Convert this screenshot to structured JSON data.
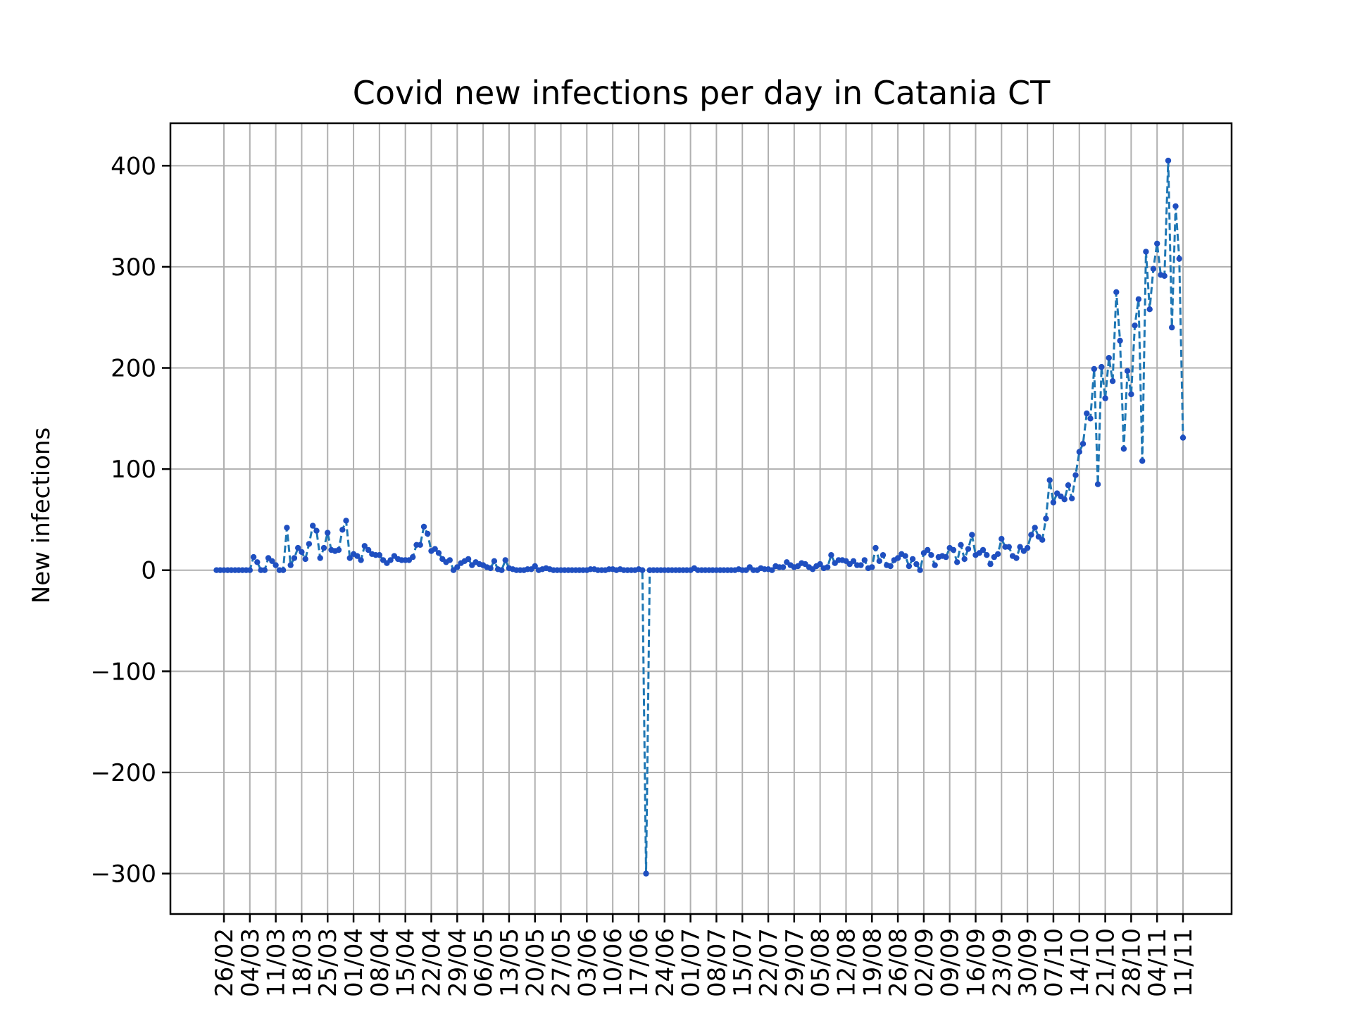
{
  "chart_data": {
    "type": "line",
    "title": "Covid new infections per day in Catania CT",
    "xlabel": "",
    "ylabel": "New infections",
    "ylim": [
      -340,
      442
    ],
    "yticks": [
      -300,
      -200,
      -100,
      0,
      100,
      200,
      300,
      400
    ],
    "ytick_labels": [
      "−300",
      "−200",
      "−100",
      "0",
      "100",
      "200",
      "300",
      "400"
    ],
    "xticks": [
      {
        "date": "2020-02-26",
        "label": "26/02"
      },
      {
        "date": "2020-03-04",
        "label": "04/03"
      },
      {
        "date": "2020-03-11",
        "label": "11/03"
      },
      {
        "date": "2020-03-18",
        "label": "18/03"
      },
      {
        "date": "2020-03-25",
        "label": "25/03"
      },
      {
        "date": "2020-04-01",
        "label": "01/04"
      },
      {
        "date": "2020-04-08",
        "label": "08/04"
      },
      {
        "date": "2020-04-15",
        "label": "15/04"
      },
      {
        "date": "2020-04-22",
        "label": "22/04"
      },
      {
        "date": "2020-04-29",
        "label": "29/04"
      },
      {
        "date": "2020-05-06",
        "label": "06/05"
      },
      {
        "date": "2020-05-13",
        "label": "13/05"
      },
      {
        "date": "2020-05-20",
        "label": "20/05"
      },
      {
        "date": "2020-05-27",
        "label": "27/05"
      },
      {
        "date": "2020-06-03",
        "label": "03/06"
      },
      {
        "date": "2020-06-10",
        "label": "10/06"
      },
      {
        "date": "2020-06-17",
        "label": "17/06"
      },
      {
        "date": "2020-06-24",
        "label": "24/06"
      },
      {
        "date": "2020-07-01",
        "label": "01/07"
      },
      {
        "date": "2020-07-08",
        "label": "08/07"
      },
      {
        "date": "2020-07-15",
        "label": "15/07"
      },
      {
        "date": "2020-07-22",
        "label": "22/07"
      },
      {
        "date": "2020-07-29",
        "label": "29/07"
      },
      {
        "date": "2020-08-05",
        "label": "05/08"
      },
      {
        "date": "2020-08-12",
        "label": "12/08"
      },
      {
        "date": "2020-08-19",
        "label": "19/08"
      },
      {
        "date": "2020-08-26",
        "label": "26/08"
      },
      {
        "date": "2020-09-02",
        "label": "02/09"
      },
      {
        "date": "2020-09-09",
        "label": "09/09"
      },
      {
        "date": "2020-09-16",
        "label": "16/09"
      },
      {
        "date": "2020-09-23",
        "label": "23/09"
      },
      {
        "date": "2020-09-30",
        "label": "30/09"
      },
      {
        "date": "2020-10-07",
        "label": "07/10"
      },
      {
        "date": "2020-10-14",
        "label": "14/10"
      },
      {
        "date": "2020-10-21",
        "label": "21/10"
      },
      {
        "date": "2020-10-28",
        "label": "28/10"
      },
      {
        "date": "2020-11-04",
        "label": "04/11"
      },
      {
        "date": "2020-11-11",
        "label": "11/11"
      }
    ],
    "grid": true,
    "legend": "none",
    "colors": {
      "line": "#1f77b4",
      "marker": "#1f4fc0"
    },
    "line_style": "dashed",
    "marker": "dot",
    "series": [
      {
        "start_date": "2020-02-24",
        "values": [
          0,
          0,
          0,
          0,
          0,
          0,
          0,
          0,
          0,
          0,
          13,
          8,
          0,
          0,
          12,
          9,
          5,
          0,
          0,
          42,
          5,
          12,
          22,
          18,
          11,
          26,
          44,
          39,
          12,
          22,
          37,
          20,
          19,
          20,
          40,
          49,
          12,
          16,
          14,
          10,
          24,
          20,
          16,
          15,
          15,
          10,
          7,
          10,
          14,
          11,
          10,
          10,
          10,
          13,
          25,
          25,
          43,
          36,
          19,
          21,
          17,
          11,
          8,
          10,
          0,
          3,
          7,
          9,
          11,
          5,
          8,
          6,
          5,
          3,
          2,
          9,
          1,
          0,
          10,
          2,
          1,
          0,
          0,
          0,
          1,
          1,
          4,
          0,
          1,
          2,
          1,
          0,
          0,
          0,
          0,
          0,
          0,
          0,
          0,
          0,
          0,
          1,
          1,
          0,
          0,
          0,
          1,
          1,
          0,
          1,
          0,
          0,
          0,
          0,
          1,
          0,
          -300,
          0,
          0,
          0,
          0,
          0,
          0,
          0,
          0,
          0,
          0,
          0,
          0,
          2,
          0,
          0,
          0,
          0,
          0,
          0,
          0,
          0,
          0,
          0,
          0,
          1,
          0,
          0,
          3,
          0,
          0,
          2,
          1,
          1,
          0,
          4,
          3,
          3,
          8,
          5,
          3,
          4,
          7,
          6,
          3,
          1,
          4,
          6,
          2,
          3,
          15,
          7,
          10,
          10,
          9,
          6,
          9,
          5,
          5,
          10,
          2,
          3,
          22,
          9,
          15,
          5,
          4,
          10,
          12,
          16,
          14,
          4,
          11,
          6,
          0,
          17,
          20,
          15,
          5,
          13,
          14,
          13,
          22,
          20,
          8,
          25,
          11,
          21,
          35,
          15,
          17,
          20,
          15,
          6,
          13,
          16,
          31,
          23,
          23,
          14,
          12,
          23,
          19,
          22,
          35,
          42,
          33,
          30,
          51,
          89,
          67,
          76,
          73,
          70,
          84,
          71,
          94,
          117,
          125,
          155,
          150,
          199,
          85,
          201,
          170,
          210,
          187,
          275,
          227,
          120,
          197,
          174,
          242,
          268,
          108,
          315,
          258,
          298,
          323,
          292,
          291,
          405,
          240,
          360,
          308,
          131
        ]
      }
    ]
  }
}
